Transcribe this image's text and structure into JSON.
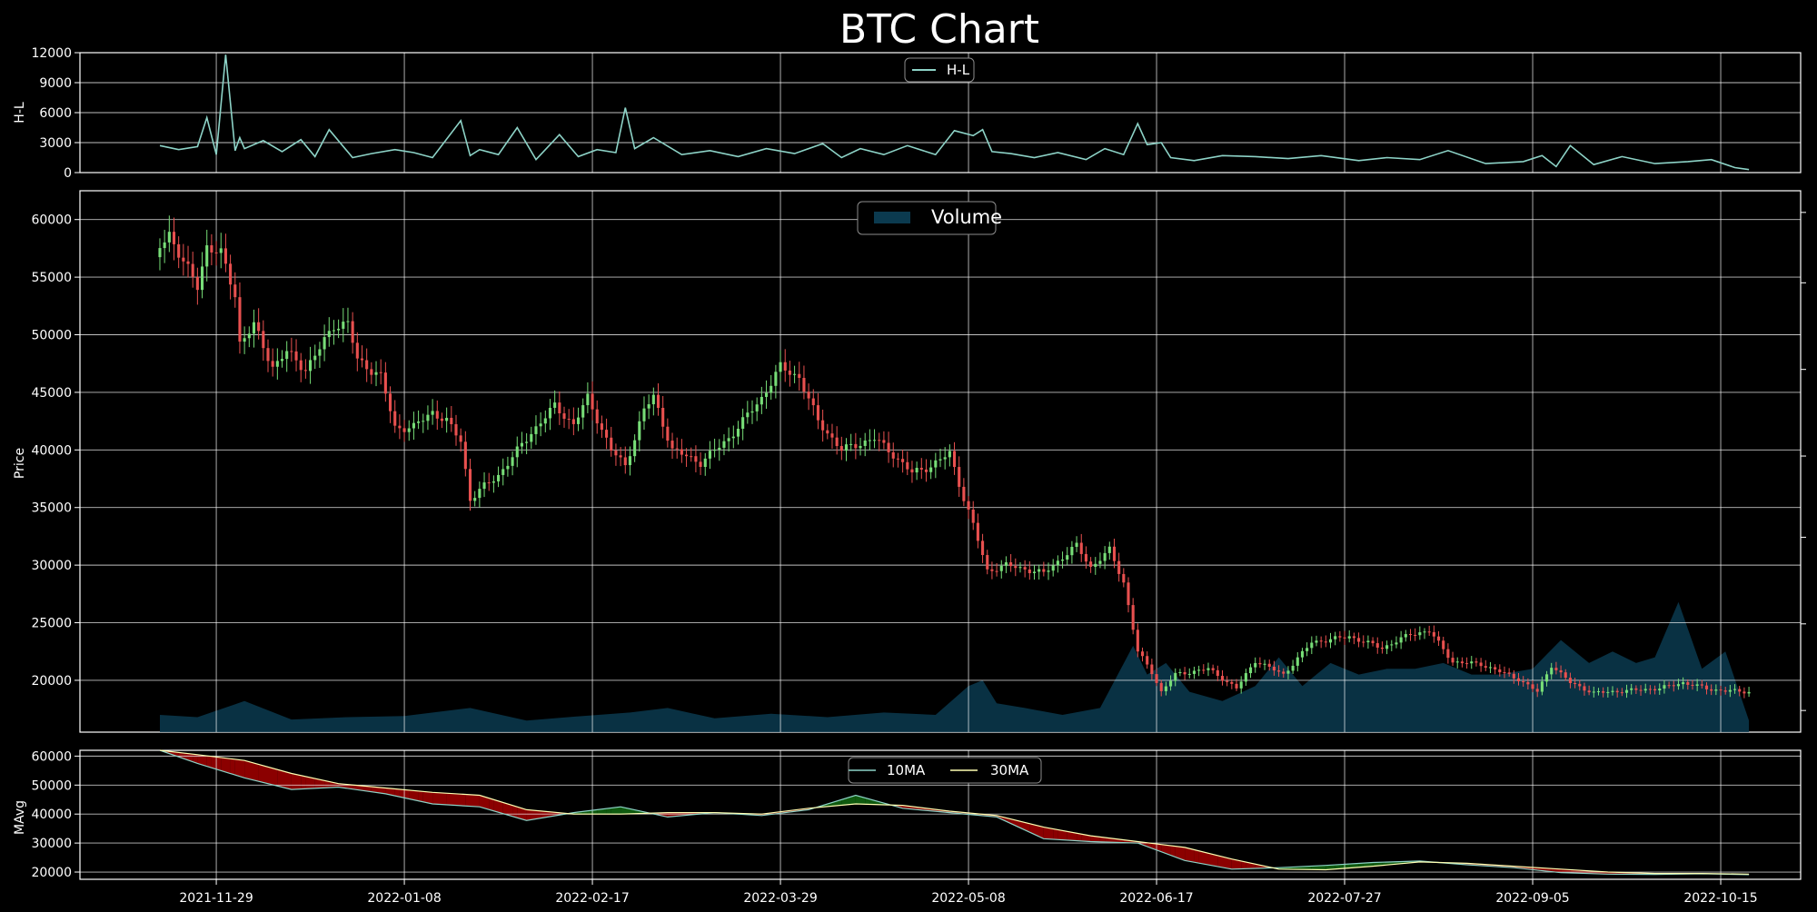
{
  "title": "BTC Chart",
  "colors": {
    "background": "#000000",
    "axis": "#ffffff",
    "grid": "#ffffff",
    "hl_line": "#8dd3c7",
    "up_candle": "#77dd77",
    "down_candle": "#e8504f",
    "volume_fill": "#0b3a4f",
    "ma10_line": "#8dd3c7",
    "ma30_line": "#ffffb3",
    "ma_fill_up": "#0f5a0f",
    "ma_fill_down": "#8b0000"
  },
  "chart_data": [
    {
      "type": "line",
      "panel": "top",
      "ylabel": "H-L",
      "ylim": [
        0,
        12000
      ],
      "yticks": [
        0,
        3000,
        6000,
        9000,
        12000
      ],
      "legend": {
        "placement": "top-center",
        "entries": [
          "H-L"
        ]
      },
      "series": [
        {
          "name": "H-L",
          "x": [
            "2021-11-17",
            "2021-11-21",
            "2021-11-25",
            "2021-11-27",
            "2021-11-29",
            "2021-12-01",
            "2021-12-03",
            "2021-12-04",
            "2021-12-05",
            "2021-12-09",
            "2021-12-13",
            "2021-12-17",
            "2021-12-20",
            "2021-12-23",
            "2021-12-28",
            "2022-01-01",
            "2022-01-06",
            "2022-01-10",
            "2022-01-14",
            "2022-01-20",
            "2022-01-22",
            "2022-01-24",
            "2022-01-28",
            "2022-02-01",
            "2022-02-05",
            "2022-02-10",
            "2022-02-14",
            "2022-02-18",
            "2022-02-22",
            "2022-02-24",
            "2022-02-26",
            "2022-03-02",
            "2022-03-08",
            "2022-03-14",
            "2022-03-20",
            "2022-03-26",
            "2022-04-01",
            "2022-04-07",
            "2022-04-11",
            "2022-04-15",
            "2022-04-20",
            "2022-04-25",
            "2022-05-01",
            "2022-05-05",
            "2022-05-09",
            "2022-05-11",
            "2022-05-13",
            "2022-05-17",
            "2022-05-22",
            "2022-05-27",
            "2022-06-02",
            "2022-06-06",
            "2022-06-10",
            "2022-06-13",
            "2022-06-15",
            "2022-06-18",
            "2022-06-20",
            "2022-06-25",
            "2022-07-01",
            "2022-07-08",
            "2022-07-15",
            "2022-07-22",
            "2022-07-30",
            "2022-08-05",
            "2022-08-12",
            "2022-08-18",
            "2022-08-26",
            "2022-09-03",
            "2022-09-07",
            "2022-09-10",
            "2022-09-13",
            "2022-09-18",
            "2022-09-24",
            "2022-10-01",
            "2022-10-08",
            "2022-10-13",
            "2022-10-18",
            "2022-10-21"
          ],
          "values": [
            2700,
            2300,
            2600,
            5500,
            1800,
            11800,
            2200,
            3500,
            2400,
            3200,
            2100,
            3300,
            1600,
            4300,
            1500,
            1900,
            2300,
            2000,
            1500,
            5200,
            1700,
            2300,
            1800,
            4500,
            1300,
            3800,
            1600,
            2300,
            2000,
            6500,
            2400,
            3500,
            1800,
            2200,
            1600,
            2400,
            1900,
            2900,
            1500,
            2400,
            1800,
            2700,
            1800,
            4200,
            3700,
            4300,
            2100,
            1900,
            1500,
            2000,
            1300,
            2400,
            1800,
            4900,
            2800,
            3000,
            1500,
            1200,
            1700,
            1600,
            1400,
            1700,
            1200,
            1500,
            1300,
            2200,
            900,
            1100,
            1700,
            600,
            2700,
            800,
            1600,
            900,
            1100,
            1300,
            500,
            300
          ]
        }
      ]
    },
    {
      "type": "candlestick",
      "panel": "middle",
      "ylabel": "Price",
      "ylim": [
        15500,
        62500
      ],
      "yticks": [
        20000,
        25000,
        30000,
        35000,
        40000,
        45000,
        50000,
        55000,
        60000
      ],
      "legend": {
        "placement": "top-center",
        "entries": [
          "Volume"
        ]
      },
      "price_anchors": {
        "x": [
          "2021-11-17",
          "2021-11-19",
          "2021-11-22",
          "2021-11-25",
          "2021-11-27",
          "2021-11-30",
          "2021-12-03",
          "2021-12-04",
          "2021-12-07",
          "2021-12-11",
          "2021-12-14",
          "2021-12-18",
          "2021-12-21",
          "2021-12-24",
          "2021-12-27",
          "2021-12-29",
          "2022-01-03",
          "2022-01-06",
          "2022-01-10",
          "2022-01-14",
          "2022-01-17",
          "2022-01-20",
          "2022-01-22",
          "2022-01-24",
          "2022-01-28",
          "2022-02-04",
          "2022-02-09",
          "2022-02-13",
          "2022-02-16",
          "2022-02-21",
          "2022-02-24",
          "2022-02-28",
          "2022-03-02",
          "2022-03-06",
          "2022-03-12",
          "2022-03-18",
          "2022-03-25",
          "2022-03-29",
          "2022-04-02",
          "2022-04-06",
          "2022-04-11",
          "2022-04-18",
          "2022-04-22",
          "2022-04-26",
          "2022-04-30",
          "2022-05-04",
          "2022-05-07",
          "2022-05-09",
          "2022-05-12",
          "2022-05-16",
          "2022-05-24",
          "2022-05-31",
          "2022-06-03",
          "2022-06-07",
          "2022-06-10",
          "2022-06-13",
          "2022-06-16",
          "2022-06-18",
          "2022-06-21",
          "2022-06-28",
          "2022-07-04",
          "2022-07-08",
          "2022-07-14",
          "2022-07-20",
          "2022-07-28",
          "2022-08-04",
          "2022-08-10",
          "2022-08-14",
          "2022-08-19",
          "2022-08-25",
          "2022-09-02",
          "2022-09-06",
          "2022-09-09",
          "2022-09-13",
          "2022-09-18",
          "2022-09-25",
          "2022-10-02",
          "2022-10-07",
          "2022-10-13",
          "2022-10-16",
          "2022-10-21"
        ],
        "close": [
          57600,
          58800,
          56300,
          54200,
          57700,
          57000,
          53500,
          49300,
          50800,
          47200,
          48500,
          47000,
          48800,
          50800,
          51000,
          47800,
          46400,
          41900,
          42000,
          43300,
          42500,
          40800,
          35700,
          36500,
          37800,
          41500,
          43800,
          42200,
          44500,
          40000,
          38600,
          43500,
          44600,
          40000,
          38900,
          41000,
          44500,
          47200,
          46300,
          42500,
          40000,
          41000,
          39600,
          38000,
          38600,
          39700,
          35800,
          33500,
          29500,
          30000,
          29300,
          31700,
          29800,
          31300,
          28500,
          22500,
          20700,
          19000,
          20500,
          21000,
          19300,
          21700,
          20500,
          23300,
          23800,
          22800,
          24000,
          24300,
          21600,
          21400,
          20100,
          19000,
          21300,
          19800,
          18900,
          19100,
          19300,
          19800,
          19200,
          19100,
          19000
        ]
      },
      "volume_series": {
        "name": "Volume",
        "x": [
          "2021-11-17",
          "2021-11-25",
          "2021-12-05",
          "2021-12-15",
          "2021-12-27",
          "2022-01-08",
          "2022-01-22",
          "2022-02-03",
          "2022-02-15",
          "2022-02-25",
          "2022-03-05",
          "2022-03-15",
          "2022-03-27",
          "2022-04-08",
          "2022-04-20",
          "2022-05-01",
          "2022-05-08",
          "2022-05-11",
          "2022-05-14",
          "2022-05-20",
          "2022-05-28",
          "2022-06-05",
          "2022-06-12",
          "2022-06-15",
          "2022-06-19",
          "2022-06-24",
          "2022-07-01",
          "2022-07-08",
          "2022-07-13",
          "2022-07-18",
          "2022-07-24",
          "2022-07-30",
          "2022-08-05",
          "2022-08-11",
          "2022-08-17",
          "2022-08-23",
          "2022-08-29",
          "2022-09-05",
          "2022-09-11",
          "2022-09-17",
          "2022-09-22",
          "2022-09-27",
          "2022-10-01",
          "2022-10-06",
          "2022-10-11",
          "2022-10-16",
          "2022-10-21"
        ],
        "level": [
          17000,
          16800,
          18200,
          16600,
          16800,
          16900,
          17600,
          16500,
          16900,
          17200,
          17600,
          16700,
          17100,
          16800,
          17200,
          17000,
          19500,
          20000,
          18000,
          17600,
          17000,
          17600,
          23000,
          20500,
          21500,
          19000,
          18200,
          19500,
          22000,
          19500,
          21500,
          20500,
          21000,
          21000,
          21500,
          20500,
          20500,
          21000,
          23500,
          21500,
          22500,
          21500,
          22000,
          26800,
          21000,
          22500,
          16500
        ]
      }
    },
    {
      "type": "line",
      "panel": "bottom",
      "ylabel": "MAvg",
      "ylim": [
        17500,
        62000
      ],
      "yticks": [
        20000,
        30000,
        40000,
        50000,
        60000
      ],
      "legend": {
        "placement": "top-center",
        "entries": [
          "10MA",
          "30MA"
        ]
      },
      "series": [
        {
          "name": "10MA",
          "x": [
            "2021-11-17",
            "2021-11-25",
            "2021-12-05",
            "2021-12-15",
            "2021-12-25",
            "2022-01-04",
            "2022-01-14",
            "2022-01-24",
            "2022-02-03",
            "2022-02-13",
            "2022-02-23",
            "2022-03-05",
            "2022-03-15",
            "2022-03-25",
            "2022-04-04",
            "2022-04-14",
            "2022-04-24",
            "2022-05-04",
            "2022-05-14",
            "2022-05-24",
            "2022-06-03",
            "2022-06-13",
            "2022-06-23",
            "2022-07-03",
            "2022-07-13",
            "2022-07-23",
            "2022-08-02",
            "2022-08-12",
            "2022-08-22",
            "2022-09-01",
            "2022-09-11",
            "2022-09-21",
            "2022-10-01",
            "2022-10-11",
            "2022-10-21"
          ],
          "values": [
            62000,
            57500,
            52500,
            48500,
            49300,
            47000,
            43500,
            42500,
            37800,
            40500,
            42500,
            39000,
            40500,
            39500,
            41500,
            46500,
            42000,
            40500,
            39000,
            31500,
            30500,
            30000,
            24000,
            21000,
            21500,
            22300,
            23300,
            23800,
            22500,
            21500,
            19800,
            19300,
            19200,
            19400,
            19100
          ]
        },
        {
          "name": "30MA",
          "x": [
            "2021-11-17",
            "2021-11-25",
            "2021-12-05",
            "2021-12-15",
            "2021-12-25",
            "2022-01-04",
            "2022-01-14",
            "2022-01-24",
            "2022-02-03",
            "2022-02-13",
            "2022-02-23",
            "2022-03-05",
            "2022-03-15",
            "2022-03-25",
            "2022-04-04",
            "2022-04-14",
            "2022-04-24",
            "2022-05-04",
            "2022-05-14",
            "2022-05-24",
            "2022-06-03",
            "2022-06-13",
            "2022-06-23",
            "2022-07-03",
            "2022-07-13",
            "2022-07-23",
            "2022-08-02",
            "2022-08-12",
            "2022-08-22",
            "2022-09-01",
            "2022-09-11",
            "2022-09-21",
            "2022-10-01",
            "2022-10-11",
            "2022-10-21"
          ],
          "values": [
            62000,
            60500,
            58500,
            54000,
            50500,
            49000,
            47500,
            46500,
            41500,
            40000,
            40000,
            40500,
            40500,
            40000,
            42000,
            43500,
            43000,
            41000,
            39500,
            35500,
            32500,
            30500,
            28500,
            24500,
            21000,
            20800,
            22000,
            23500,
            23000,
            22000,
            21000,
            20000,
            19500,
            19500,
            19300
          ]
        }
      ]
    }
  ],
  "x_axis": {
    "ticks": [
      "2021-11-29",
      "2022-01-08",
      "2022-02-17",
      "2022-03-29",
      "2022-05-08",
      "2022-06-17",
      "2022-07-27",
      "2022-09-05",
      "2022-10-15"
    ],
    "range": [
      "2021-10-31",
      "2022-11-01"
    ]
  }
}
